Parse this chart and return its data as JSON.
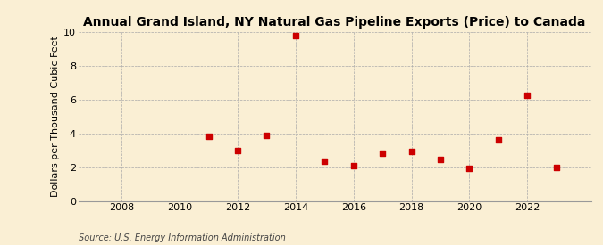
{
  "title": "Annual Grand Island, NY Natural Gas Pipeline Exports (Price) to Canada",
  "ylabel": "Dollars per Thousand Cubic Feet",
  "source": "Source: U.S. Energy Information Administration",
  "background_color": "#faefd4",
  "years": [
    2011,
    2012,
    2013,
    2014,
    2015,
    2016,
    2017,
    2018,
    2019,
    2020,
    2021,
    2022,
    2023
  ],
  "values": [
    3.8,
    3.0,
    3.85,
    9.8,
    2.35,
    2.1,
    2.8,
    2.95,
    2.45,
    1.9,
    3.6,
    6.25,
    1.95
  ],
  "marker_color": "#cc0000",
  "marker_size": 18,
  "xlim": [
    2006.5,
    2024.2
  ],
  "ylim": [
    0,
    10
  ],
  "xticks": [
    2008,
    2010,
    2012,
    2014,
    2016,
    2018,
    2020,
    2022
  ],
  "yticks": [
    0,
    2,
    4,
    6,
    8,
    10
  ],
  "title_fontsize": 10,
  "label_fontsize": 8,
  "tick_fontsize": 8,
  "source_fontsize": 7
}
